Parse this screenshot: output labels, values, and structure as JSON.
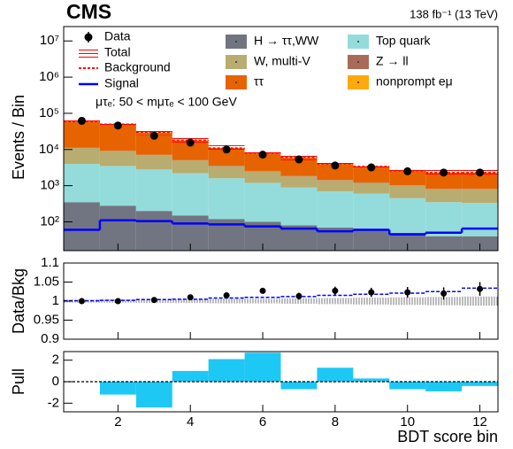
{
  "chart_data": [
    {
      "type": "stacked_bar",
      "log_y": true,
      "header": "CMS",
      "lumi": "138 fb⁻¹ (13 TeV)",
      "annotation": "μτₑ: 50 < mμτₑ < 100 GeV",
      "ylabel": "Events / Bin",
      "x": [
        1,
        2,
        3,
        4,
        5,
        6,
        7,
        8,
        9,
        10,
        11,
        12
      ],
      "xlim": [
        0.5,
        12.5
      ],
      "ylim": [
        16,
        25000000
      ],
      "yticks": [
        {
          "value": 100,
          "label": "10²"
        },
        {
          "value": 1000,
          "label": "10³"
        },
        {
          "value": 10000,
          "label": "10⁴"
        },
        {
          "value": 100000,
          "label": "10⁵"
        },
        {
          "value": 1000000,
          "label": "10⁶"
        },
        {
          "value": 10000000,
          "label": "10⁷"
        }
      ],
      "series": [
        {
          "name": "H → ττ,WW",
          "color": "#717581",
          "values": [
            350,
            280,
            200,
            150,
            120,
            100,
            80,
            70,
            65,
            50,
            40,
            40
          ]
        },
        {
          "name": "Top quark",
          "color": "#94dcdc",
          "values": [
            3650,
            3220,
            2600,
            2050,
            1480,
            1100,
            820,
            630,
            535,
            400,
            310,
            290
          ]
        },
        {
          "name": "W, multi-V",
          "color": "#b9ac70",
          "values": [
            7000,
            5500,
            4200,
            2800,
            1900,
            1300,
            900,
            700,
            600,
            550,
            450,
            470
          ]
        },
        {
          "name": "Z → ll",
          "color": "#a96b59",
          "values": [
            300,
            250,
            180,
            120,
            80,
            60,
            45,
            35,
            30,
            25,
            20,
            20
          ]
        },
        {
          "name": "ττ",
          "color": "#e76300",
          "values": [
            47500,
            39750,
            22220,
            12480,
            7170,
            5260,
            4005,
            2465,
            2080,
            1505,
            1420,
            1420
          ]
        },
        {
          "name": "nonprompt eμ",
          "color": "#ffa90e",
          "values": [
            1200,
            1000,
            600,
            400,
            250,
            180,
            150,
            100,
            90,
            70,
            60,
            60
          ]
        }
      ],
      "data": {
        "name": "Data",
        "color": "#000000",
        "values": [
          62000,
          46000,
          24000,
          15500,
          10000,
          7200,
          5300,
          3600,
          3200,
          2500,
          2300,
          2300
        ]
      },
      "total": {
        "name": "Total",
        "color": "#ff0000",
        "values": [
          60000,
          50000,
          30000,
          18000,
          11000,
          8000,
          6000,
          4000,
          3400,
          2600,
          2300,
          2300
        ]
      },
      "background": {
        "name": "Background",
        "color": "#ff0000"
      },
      "signal": {
        "name": "Signal",
        "color": "#0000ff",
        "values": [
          60,
          110,
          105,
          90,
          85,
          75,
          65,
          55,
          60,
          45,
          50,
          65
        ]
      }
    },
    {
      "type": "scatter",
      "ylabel": "Data/Bkg",
      "ylim": [
        0.9,
        1.1
      ],
      "yticks": [
        0.9,
        0.95,
        1,
        1.05,
        1.1
      ],
      "values": [
        1.0,
        1.0,
        1.003,
        1.01,
        1.015,
        1.027,
        1.013,
        1.027,
        1.023,
        1.023,
        1.02,
        1.032
      ],
      "errors": [
        0.003,
        0.003,
        0.004,
        0.005,
        0.006,
        0.007,
        0.009,
        0.011,
        0.012,
        0.014,
        0.016,
        0.018
      ],
      "uncertainty": [
        0.004,
        0.004,
        0.005,
        0.005,
        0.006,
        0.006,
        0.007,
        0.008,
        0.009,
        0.01,
        0.011,
        0.012
      ],
      "signal_ratio": {
        "color": "#0000ff",
        "values": [
          1.001,
          1.002,
          1.004,
          1.005,
          1.008,
          1.01,
          1.012,
          1.015,
          1.018,
          1.021,
          1.025,
          1.034
        ]
      }
    },
    {
      "type": "bar",
      "ylabel": "Pull",
      "xlabel": "BDT score bin",
      "ylim": [
        -2.8,
        2.8
      ],
      "yticks": [
        -2,
        0,
        2
      ],
      "xticks": [
        2,
        4,
        6,
        8,
        10,
        12
      ],
      "color": "#1ec8f5",
      "values": [
        0,
        -1.2,
        -2.4,
        1.0,
        2.1,
        2.7,
        -0.7,
        1.3,
        0.3,
        -0.7,
        -0.9,
        -0.4
      ]
    }
  ]
}
